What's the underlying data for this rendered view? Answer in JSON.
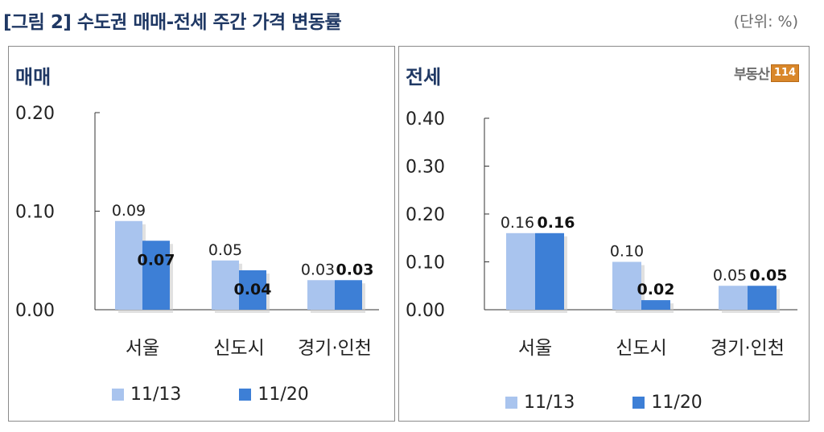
{
  "header": {
    "title": "[그림 2] 수도권 매매-전세 주간 가격 변동률",
    "unit": "(단위: %)"
  },
  "logo": {
    "text": "부동산",
    "box": "114"
  },
  "colors": {
    "series_a": "#a9c4ee",
    "series_b": "#3d7fd6"
  },
  "chart_data": [
    {
      "type": "bar",
      "title": "매매",
      "categories": [
        "서울",
        "신도시",
        "경기·인천"
      ],
      "series": [
        {
          "name": "11/13",
          "values": [
            0.09,
            0.05,
            0.03
          ],
          "labels": [
            "0.09",
            "0.05",
            "0.03"
          ]
        },
        {
          "name": "11/20",
          "values": [
            0.07,
            0.04,
            0.03
          ],
          "labels": [
            "0.07",
            "0.04",
            "0.03"
          ]
        }
      ],
      "ylim": [
        0,
        0.2
      ],
      "yticks": [
        "0.00",
        "0.10",
        "0.20"
      ],
      "ytick_values": [
        0,
        0.1,
        0.2
      ],
      "grid": false,
      "legend": "bottom"
    },
    {
      "type": "bar",
      "title": "전세",
      "categories": [
        "서울",
        "신도시",
        "경기·인천"
      ],
      "series": [
        {
          "name": "11/13",
          "values": [
            0.16,
            0.1,
            0.05
          ],
          "labels": [
            "0.16",
            "0.10",
            "0.05"
          ]
        },
        {
          "name": "11/20",
          "values": [
            0.16,
            0.02,
            0.05
          ],
          "labels": [
            "0.16",
            "0.02",
            "0.05"
          ]
        }
      ],
      "ylim": [
        0,
        0.4
      ],
      "yticks": [
        "0.00",
        "0.10",
        "0.20",
        "0.30",
        "0.40"
      ],
      "ytick_values": [
        0,
        0.1,
        0.2,
        0.3,
        0.4
      ],
      "grid": false,
      "legend": "bottom"
    }
  ]
}
